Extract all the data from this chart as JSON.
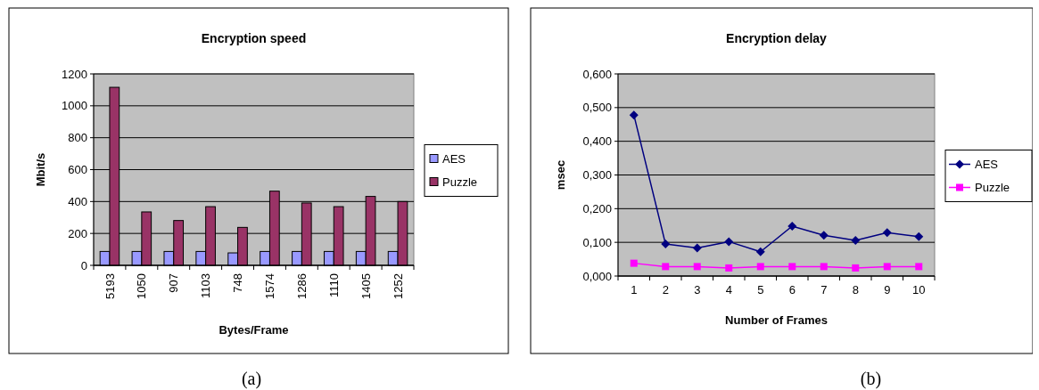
{
  "chart_data": [
    {
      "type": "bar",
      "title": "Encryption speed",
      "xlabel": "Bytes/Frame",
      "ylabel": "Mbit/s",
      "categories": [
        "5193",
        "1050",
        "907",
        "1103",
        "748",
        "1574",
        "1286",
        "1110",
        "1405",
        "1252"
      ],
      "series": [
        {
          "name": "AES",
          "color": "#9999ff",
          "values": [
            87,
            87,
            87,
            87,
            78,
            87,
            87,
            87,
            87,
            87
          ]
        },
        {
          "name": "Puzzle",
          "color": "#993366",
          "values": [
            1116,
            335,
            281,
            368,
            238,
            465,
            391,
            368,
            432,
            400
          ]
        }
      ],
      "ylim": [
        0,
        1200
      ],
      "yticks": [
        0,
        200,
        400,
        600,
        800,
        1000,
        1200
      ],
      "grid": "y",
      "legend": "right",
      "annotations": [
        "(a)"
      ]
    },
    {
      "type": "line",
      "title": "Encryption delay",
      "xlabel": "Number of Frames",
      "ylabel": "msec",
      "categories": [
        "1",
        "2",
        "3",
        "4",
        "5",
        "6",
        "7",
        "8",
        "9",
        "10"
      ],
      "series": [
        {
          "name": "AES",
          "color": "#000080",
          "marker": "diamond",
          "values": [
            0.478,
            0.095,
            0.083,
            0.102,
            0.072,
            0.148,
            0.121,
            0.106,
            0.129,
            0.117
          ]
        },
        {
          "name": "Puzzle",
          "color": "#ff00ff",
          "marker": "square",
          "values": [
            0.038,
            0.028,
            0.028,
            0.024,
            0.028,
            0.028,
            0.028,
            0.024,
            0.028,
            0.028
          ]
        }
      ],
      "ylim": [
        0,
        0.6
      ],
      "yticks": [
        {
          "value": 0,
          "label": "0,000"
        },
        {
          "value": 0.1,
          "label": "0,100"
        },
        {
          "value": 0.2,
          "label": "0,200"
        },
        {
          "value": 0.3,
          "label": "0,300"
        },
        {
          "value": 0.4,
          "label": "0,400"
        },
        {
          "value": 0.5,
          "label": "0,500"
        },
        {
          "value": 0.6,
          "label": "0,600"
        }
      ],
      "grid": "y",
      "legend": "right",
      "annotations": [
        "(b)"
      ]
    }
  ]
}
